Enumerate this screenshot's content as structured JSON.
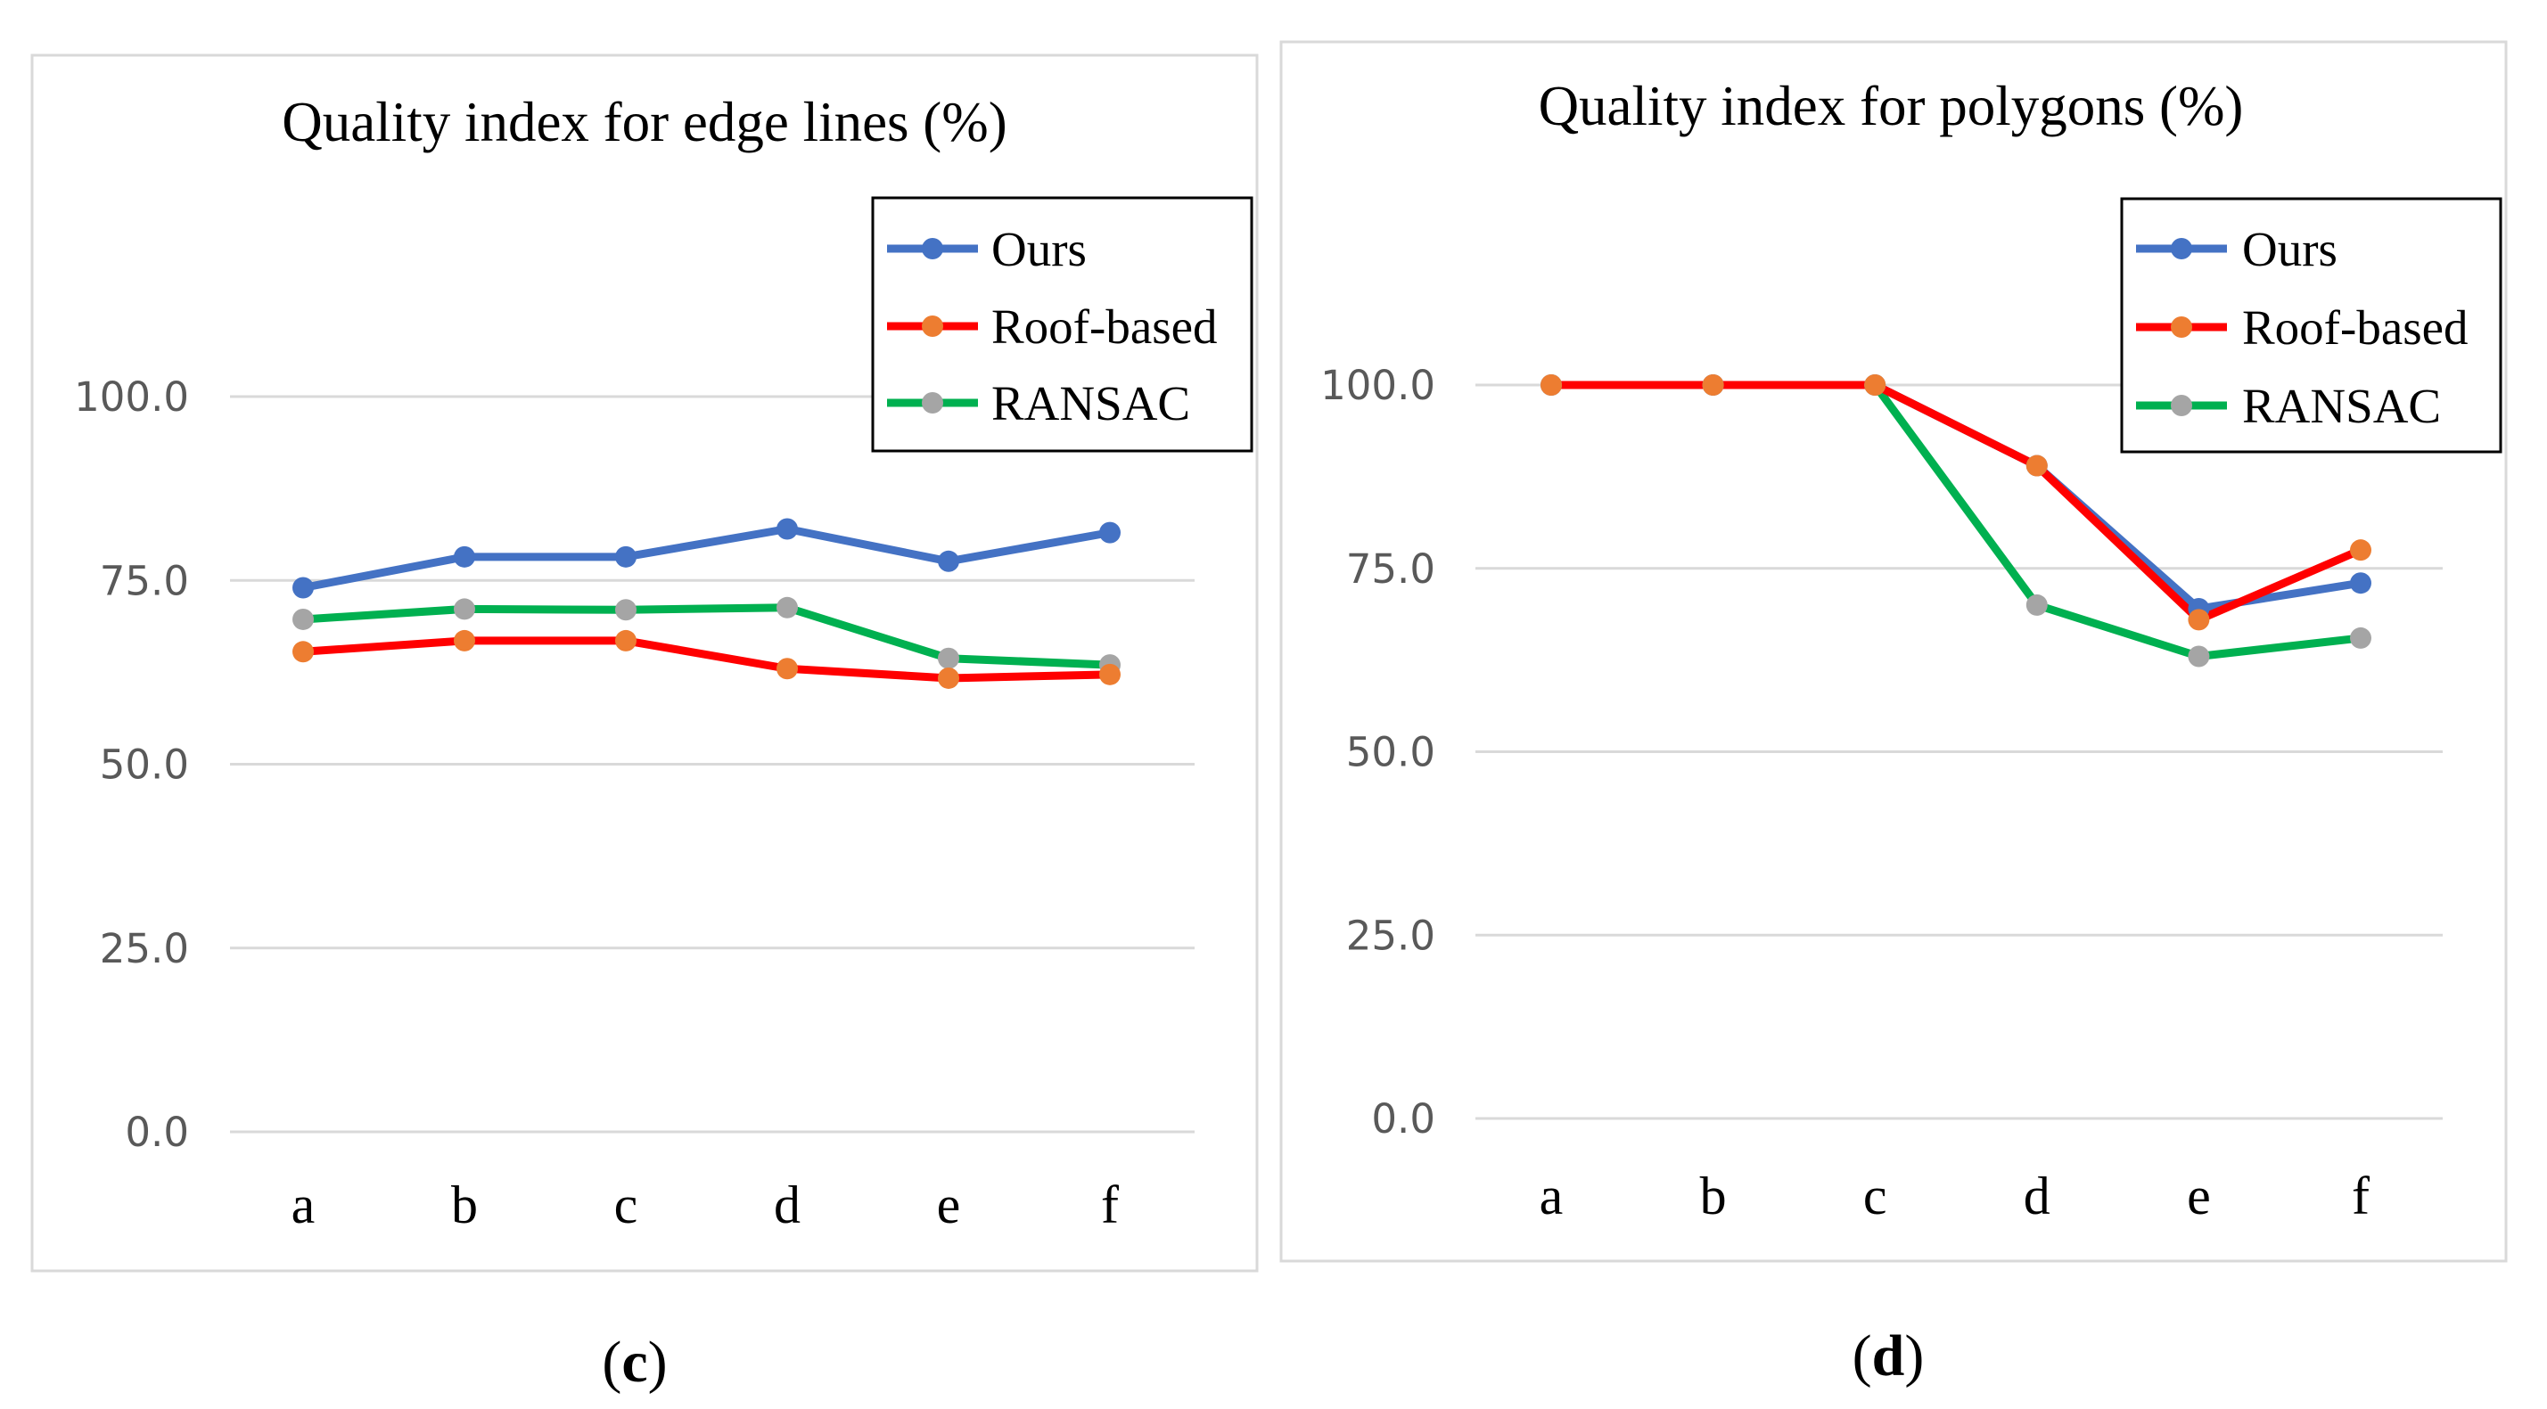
{
  "chart_data": [
    {
      "type": "line",
      "title": "Quality index for edge lines (%)",
      "caption_letter": "c",
      "categories": [
        "a",
        "b",
        "c",
        "d",
        "e",
        "f"
      ],
      "yticks": [
        "0.0",
        "25.0",
        "50.0",
        "75.0",
        "100.0"
      ],
      "ylim": [
        0,
        100
      ],
      "grid": true,
      "legend_position": "top-right",
      "series": [
        {
          "name": "Ours",
          "line_color": "#4472C4",
          "marker_color": "#4472C4",
          "values": [
            74.0,
            78.2,
            78.2,
            82.0,
            77.6,
            81.5
          ]
        },
        {
          "name": "Roof-based",
          "line_color": "#FF0000",
          "marker_color": "#ED7D31",
          "values": [
            65.3,
            66.8,
            66.8,
            63.0,
            61.7,
            62.2
          ]
        },
        {
          "name": "RANSAC",
          "line_color": "#00B050",
          "marker_color": "#A5A5A5",
          "values": [
            69.7,
            71.1,
            71.0,
            71.3,
            64.4,
            63.5
          ]
        }
      ]
    },
    {
      "type": "line",
      "title": "Quality index for polygons (%)",
      "caption_letter": "d",
      "categories": [
        "a",
        "b",
        "c",
        "d",
        "e",
        "f"
      ],
      "yticks": [
        "0.0",
        "25.0",
        "50.0",
        "75.0",
        "100.0"
      ],
      "ylim": [
        0,
        100
      ],
      "grid": true,
      "legend_position": "top-right",
      "series": [
        {
          "name": "Ours",
          "line_color": "#4472C4",
          "marker_color": "#4472C4",
          "values": [
            100.0,
            100.0,
            100.0,
            89.0,
            69.5,
            73.0
          ]
        },
        {
          "name": "Roof-based",
          "line_color": "#FF0000",
          "marker_color": "#ED7D31",
          "values": [
            100.0,
            100.0,
            100.0,
            89.0,
            68.0,
            77.5
          ]
        },
        {
          "name": "RANSAC",
          "line_color": "#00B050",
          "marker_color": "#A5A5A5",
          "values": [
            100.0,
            100.0,
            100.0,
            70.0,
            63.0,
            65.5
          ]
        }
      ]
    }
  ]
}
